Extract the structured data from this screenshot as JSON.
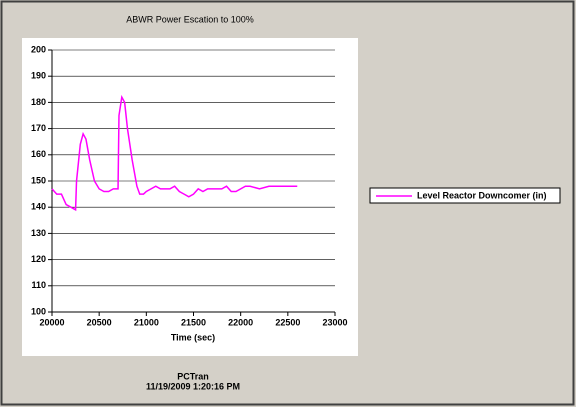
{
  "chart_data": {
    "type": "line",
    "title": "ABWR Power Escation to 100%",
    "xlabel": "Time (sec)",
    "footer": [
      "PCTran",
      "11/19/2009 1:20:16 PM"
    ],
    "x": [
      20000,
      20050,
      20100,
      20150,
      20200,
      20250,
      20260,
      20300,
      20330,
      20360,
      20400,
      20450,
      20500,
      20550,
      20600,
      20650,
      20700,
      20710,
      20740,
      20770,
      20800,
      20850,
      20900,
      20930,
      20970,
      21000,
      21050,
      21100,
      21150,
      21200,
      21250,
      21300,
      21350,
      21400,
      21450,
      21500,
      21550,
      21600,
      21650,
      21700,
      21800,
      21850,
      21900,
      21950,
      22000,
      22050,
      22100,
      22200,
      22300,
      22400,
      22500,
      22600
    ],
    "series": [
      {
        "name": "Level Reactor Downcomer (in)",
        "color": "#ff00ff",
        "values": [
          147,
          145,
          145,
          141,
          140,
          139,
          150,
          164,
          168,
          166,
          158,
          150,
          147,
          146,
          146,
          147,
          147,
          175,
          182,
          180,
          170,
          158,
          148,
          145,
          145,
          146,
          147,
          148,
          147,
          147,
          147,
          148,
          146,
          145,
          144,
          145,
          147,
          146,
          147,
          147,
          147,
          148,
          146,
          146,
          147,
          148,
          148,
          147,
          148,
          148,
          148,
          148
        ]
      }
    ],
    "xlim": [
      20000,
      23000
    ],
    "xticks": [
      20000,
      20500,
      21000,
      21500,
      22000,
      22500,
      23000
    ],
    "ylim": [
      100,
      200
    ],
    "yticks": [
      100,
      110,
      120,
      130,
      140,
      150,
      160,
      170,
      180,
      190,
      200
    ],
    "grid": true
  }
}
